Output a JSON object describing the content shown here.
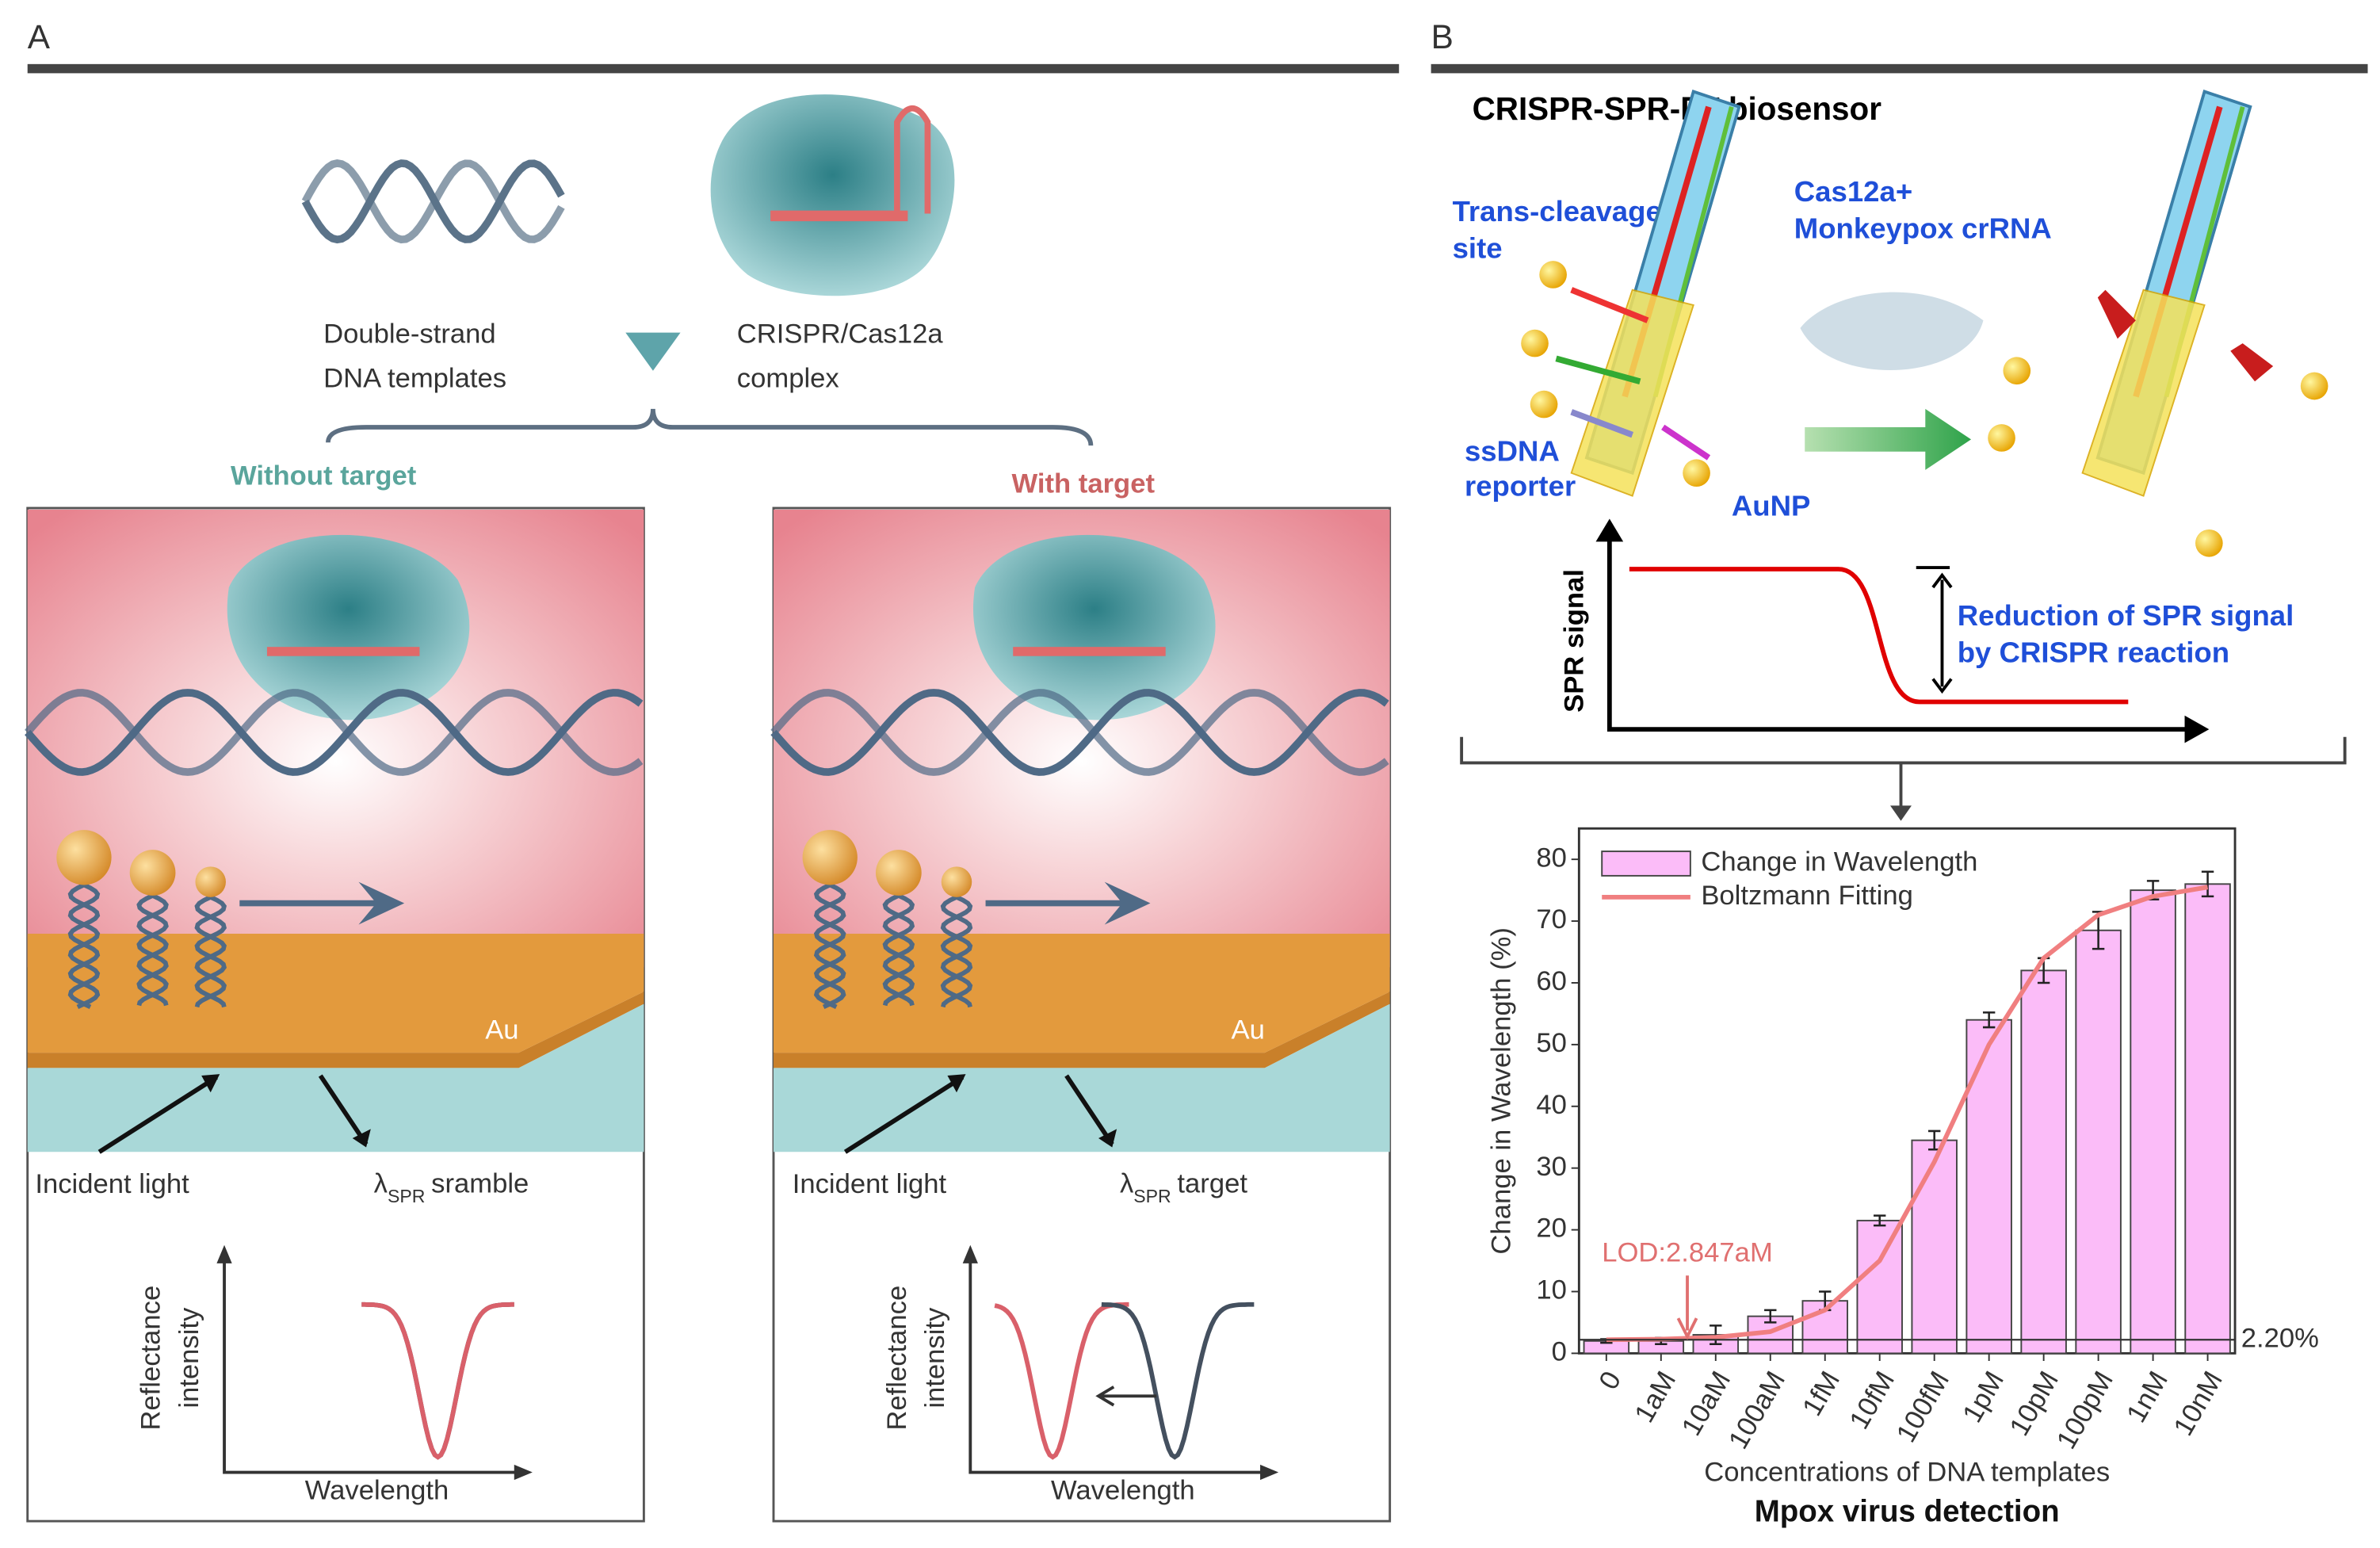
{
  "panels": [
    {
      "label": "A"
    },
    {
      "label": "B"
    }
  ],
  "panel_a": {
    "inputs": [
      {
        "lines": [
          "Double-strand",
          "DNA templates"
        ]
      },
      {
        "lines": [
          "CRISPR/Cas12a",
          "complex"
        ]
      }
    ],
    "conditions": [
      {
        "title": "Without target",
        "surface": "Au",
        "incident": "Incident light",
        "spr": {
          "symbol": "λ",
          "subscript": "SPR",
          "text": "sramble"
        },
        "plot": {
          "y_label": [
            "Reflectance",
            "intensity"
          ],
          "x_label": "Wavelength"
        }
      },
      {
        "title": "With target",
        "surface": "Au",
        "incident": "Incident light",
        "spr": {
          "symbol": "λ",
          "subscript": "SPR",
          "text": "target"
        },
        "plot": {
          "y_label": [
            "Reflectance",
            "intensity"
          ],
          "x_label": "Wavelength"
        }
      }
    ]
  },
  "panel_b": {
    "title": "CRISPR-SPR-FT biosensor",
    "trans_cleavage": [
      "Trans-cleavage",
      "site"
    ],
    "cas12a": [
      "Cas12a+",
      "Monkeypox crRNA"
    ],
    "ssdna": [
      "ssDNA",
      "reporter"
    ],
    "aunp": "AuNP",
    "signal_axis": "SPR signal",
    "reduction": [
      "Reduction of SPR signal",
      "by CRISPR reaction"
    ]
  },
  "chart_data": {
    "type": "bar",
    "x_label": "Concentrations of DNA templates",
    "y_label": "Change in Wavelength (%)",
    "subtitle": "Mpox virus detection",
    "categories": [
      "0",
      "1aM",
      "10aM",
      "100aM",
      "1fM",
      "10fM",
      "100fM",
      "1pM",
      "10pM",
      "100pM",
      "1nM",
      "10nM"
    ],
    "series": [
      {
        "name": "Change in Wavelength",
        "type": "bar",
        "color": "#fbbcf8",
        "values": [
          2,
          2,
          3,
          6,
          8.5,
          21.5,
          34.5,
          54,
          62,
          68.5,
          75,
          76
        ],
        "errors": [
          0.3,
          0.5,
          1.5,
          1,
          1.5,
          0.8,
          1.5,
          1.2,
          2,
          3,
          1.5,
          2
        ]
      },
      {
        "name": "Boltzmann Fitting",
        "type": "line",
        "color": "#f07f80",
        "values": [
          2.2,
          2.3,
          2.6,
          3.5,
          7,
          15,
          31,
          50,
          64,
          71,
          74,
          75.5
        ]
      }
    ],
    "ylim": [
      0,
      85
    ],
    "yticks": [
      0,
      10,
      20,
      30,
      40,
      50,
      60,
      70,
      80
    ],
    "reference_line": {
      "value": 2.2,
      "label": "2.20%"
    },
    "annotation": "LOD:2.847aM",
    "legend": "upper left"
  }
}
